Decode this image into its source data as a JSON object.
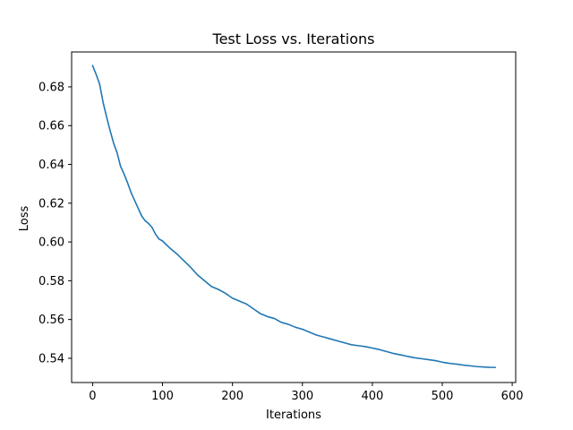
{
  "chart_data": {
    "type": "line",
    "title": "Test Loss vs. Iterations",
    "xlabel": "Iterations",
    "ylabel": "Loss",
    "xlim": [
      -30,
      605
    ],
    "ylim": [
      0.5275,
      0.698
    ],
    "xticks": [
      0,
      100,
      200,
      300,
      400,
      500,
      600
    ],
    "yticks": [
      0.54,
      0.56,
      0.58,
      0.6,
      0.62,
      0.64,
      0.66,
      0.68
    ],
    "xtick_labels": [
      "0",
      "100",
      "200",
      "300",
      "400",
      "500",
      "600"
    ],
    "ytick_labels": [
      "0.54",
      "0.56",
      "0.58",
      "0.60",
      "0.62",
      "0.64",
      "0.66",
      "0.68"
    ],
    "grid": false,
    "legend": false,
    "line_color": "#1f77b4",
    "series": [
      {
        "x": [
          0,
          5,
          10,
          15,
          20,
          25,
          30,
          35,
          40,
          45,
          50,
          55,
          60,
          65,
          70,
          75,
          80,
          85,
          90,
          95,
          100,
          110,
          120,
          130,
          140,
          150,
          160,
          170,
          180,
          190,
          200,
          210,
          220,
          230,
          240,
          250,
          260,
          270,
          280,
          290,
          300,
          310,
          320,
          330,
          340,
          350,
          360,
          370,
          380,
          390,
          400,
          410,
          420,
          430,
          440,
          450,
          460,
          470,
          480,
          490,
          500,
          510,
          520,
          530,
          540,
          550,
          560,
          570,
          576
        ],
        "values": [
          0.691,
          0.6865,
          0.6815,
          0.672,
          0.6645,
          0.6575,
          0.651,
          0.646,
          0.639,
          0.635,
          0.6305,
          0.6255,
          0.6215,
          0.6175,
          0.6135,
          0.611,
          0.6095,
          0.6075,
          0.604,
          0.6015,
          0.6005,
          0.597,
          0.594,
          0.5905,
          0.587,
          0.583,
          0.58,
          0.577,
          0.5755,
          0.5735,
          0.571,
          0.5695,
          0.568,
          0.5655,
          0.563,
          0.5615,
          0.5605,
          0.5585,
          0.5575,
          0.556,
          0.555,
          0.5535,
          0.552,
          0.551,
          0.55,
          0.549,
          0.548,
          0.547,
          0.5465,
          0.546,
          0.5453,
          0.5445,
          0.5435,
          0.5425,
          0.5418,
          0.541,
          0.5403,
          0.5398,
          0.5393,
          0.5388,
          0.538,
          0.5374,
          0.537,
          0.5365,
          0.5361,
          0.5357,
          0.5355,
          0.5353,
          0.5353
        ]
      }
    ]
  }
}
